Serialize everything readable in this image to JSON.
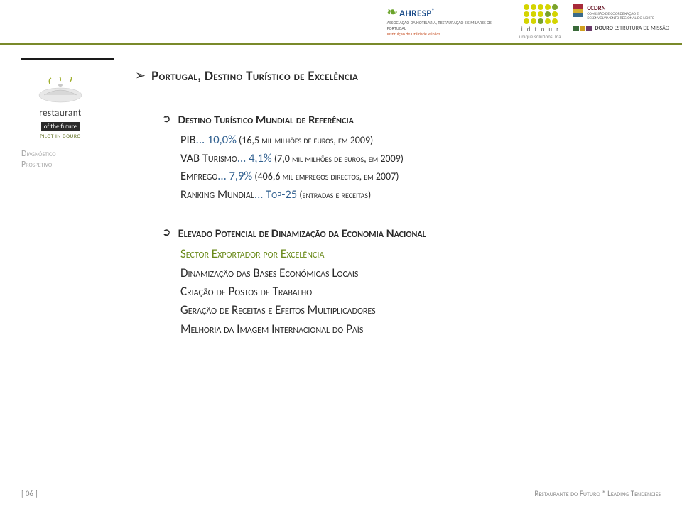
{
  "colors": {
    "olive_line": "#7a8a2a",
    "title_text": "#2a2a2a",
    "stat_num": "#2f5f8f",
    "sector_green": "#6a8a1a",
    "side_label": "#a8a8a8",
    "footer_text": "#8a8a8a"
  },
  "header": {
    "ahresp": {
      "name": "AHRESP",
      "sub1": "ASSOCIAÇÃO DA HOTELARIA, RESTAURAÇÃO E SIMILARES DE PORTUGAL",
      "sub2": "Instituição de Utilidade Pública"
    },
    "idtour": {
      "label": "i d t o u r",
      "sub": "unique solutions, lda.",
      "dot_colors": [
        "#d4d400",
        "#d4d400",
        "#d4d400",
        "#d4d400",
        "#7aa32a",
        "#d4d400",
        "#d4d400",
        "#d4d400",
        "#7aa32a",
        "#d4d400",
        "#d4d400",
        "#d4d400",
        "#7aa32a",
        "#d4d400",
        "#d4d400"
      ]
    },
    "ccdrn": {
      "name": "CCDRN",
      "sub": "COMISSÃO DE COORDENAÇÃO E\nDESENVOLVIMENTO REGIONAL DO NORTE"
    },
    "douro": {
      "sq_colors": [
        "#3a6a3a",
        "#d0a020",
        "#6a3a6a"
      ],
      "label_bold": "DOURO",
      "label_rest": " ESTRUTURA DE MISSÃO"
    }
  },
  "side_logo": {
    "title": "restaurant",
    "sub": "of the future",
    "pilot": "PILOT IN DOURO"
  },
  "side_label": {
    "l1": "Diagnóstico",
    "l2": "Prospetivo"
  },
  "main": {
    "title": "Portugal, Destino Turístico de Excelência",
    "block1": {
      "head": "Destino Turístico Mundial de Referência",
      "lines": [
        {
          "label": "PIB",
          "num": "... 10,0%",
          "detail": " (16,5 mil milhões de euros, em 2009)"
        },
        {
          "label": "VAB Turismo",
          "num": "... 4,1%",
          "detail": " (7,0 mil milhões de euros, em 2009)"
        },
        {
          "label": "Emprego",
          "num": "... 7,9%",
          "detail": " (406,6 mil empregos directos, em 2007)"
        },
        {
          "label": "Ranking Mundial",
          "num": "... Top-25",
          "detail": " (entradas e receitas)"
        }
      ]
    },
    "block2": {
      "head": "Elevado Potencial de Dinamização da Economia Nacional",
      "lines": [
        {
          "text": "Sector Exportador por Excelência",
          "cls": "green"
        },
        {
          "text": "Dinamização das Bases Económicas Locais",
          "cls": "dark"
        },
        {
          "text": "Criação de Postos de Trabalho",
          "cls": "dark"
        },
        {
          "text": "Geração de Receitas e Efeitos Multiplicadores",
          "cls": "dark"
        },
        {
          "text": "Melhoria da Imagem Internacional do País",
          "cls": "dark"
        }
      ]
    }
  },
  "footer": {
    "page": "[ 06 ]",
    "title": "Restaurante do Futuro * Leading Tendencies"
  }
}
